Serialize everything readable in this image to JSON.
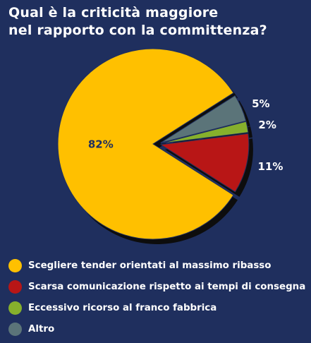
{
  "chart_data": {
    "type": "pie",
    "title_lines": [
      "Qual è la criticità maggiore",
      "nel rapporto con la committenza?"
    ],
    "slices": [
      {
        "label": "Scegliere tender orientati al massimo ribasso",
        "value": 82,
        "value_label": "82%",
        "color": "#ffc000"
      },
      {
        "label": "Scarsa comunicazione rispetto ai tempi di consegna",
        "value": 11,
        "value_label": "11%",
        "color": "#b81616"
      },
      {
        "label": "Eccessivo ricorso al franco fabbrica",
        "value": 2,
        "value_label": "2%",
        "color": "#86b02c"
      },
      {
        "label": "Altro",
        "value": 5,
        "value_label": "5%",
        "color": "#5b7479"
      }
    ],
    "legend_position": "bottom"
  }
}
